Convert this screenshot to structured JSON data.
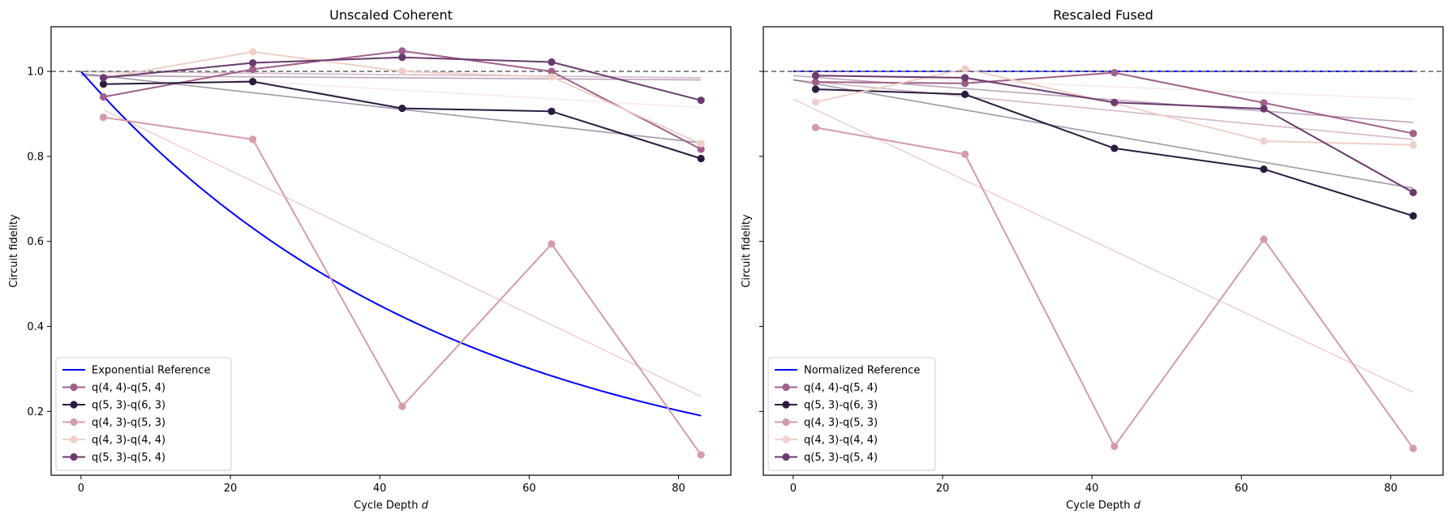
{
  "chart_data": [
    {
      "type": "line",
      "title": "Unscaled Coherent",
      "xlabel_main": "Cycle Depth ",
      "xlabel_var": "d",
      "ylabel": "Circuit fidelity",
      "xlim": [
        -4,
        87
      ],
      "ylim": [
        0.05,
        1.105
      ],
      "xticks": [
        0,
        20,
        40,
        60,
        80
      ],
      "xtick_labels": [
        "0",
        "20",
        "40",
        "60",
        "80"
      ],
      "yticks": [
        0.2,
        0.4,
        0.6,
        0.8,
        1.0
      ],
      "ytick_labels": [
        "0.2",
        "0.4",
        "0.6",
        "0.8",
        "1.0"
      ],
      "y_tick_labels_visible": true,
      "reference_hline": 1.0,
      "legend_position": "lower-left",
      "reference": {
        "name": "Exponential Reference",
        "color": "#0000ff",
        "kind": "exp",
        "amplitude": 1.0,
        "rate": 0.02
      },
      "series": [
        {
          "name": "q(4, 4)-q(5, 4)",
          "color": "#a0608a",
          "x": [
            3,
            23,
            43,
            63,
            83
          ],
          "y": [
            0.94,
            1.005,
            1.048,
            1.0,
            0.817
          ],
          "fit_x": [
            0,
            83
          ],
          "fit_y": [
            1.0,
            0.985
          ]
        },
        {
          "name": "q(5, 3)-q(6, 3)",
          "color": "#2c1b3e",
          "x": [
            3,
            23,
            43,
            63,
            83
          ],
          "y": [
            0.97,
            0.976,
            0.913,
            0.906,
            0.795
          ],
          "fit_x": [
            0,
            83
          ],
          "fit_y": [
            0.995,
            0.832
          ]
        },
        {
          "name": "q(4, 3)-q(5, 3)",
          "color": "#d49ca8",
          "x": [
            3,
            23,
            43,
            63,
            83
          ],
          "y": [
            0.892,
            0.84,
            0.212,
            0.594,
            0.098
          ],
          "fit_x": [
            3,
            83
          ],
          "fit_y": [
            0.91,
            0.235
          ]
        },
        {
          "name": "q(4, 3)-q(4, 4)",
          "color": "#efd0c8",
          "x": [
            3,
            23,
            43,
            63,
            83
          ],
          "y": [
            0.985,
            1.046,
            1.0,
            0.987,
            0.83
          ],
          "fit_x": [
            0,
            83
          ],
          "fit_y": [
            1.0,
            0.915
          ]
        },
        {
          "name": "q(5, 3)-q(5, 4)",
          "color": "#6a3a6e",
          "x": [
            3,
            23,
            43,
            63,
            83
          ],
          "y": [
            0.985,
            1.02,
            1.033,
            1.022,
            0.932
          ],
          "fit_x": [
            0,
            83
          ],
          "fit_y": [
            0.99,
            0.98
          ]
        }
      ]
    },
    {
      "type": "line",
      "title": "Rescaled Fused",
      "xlabel_main": "Cycle Depth ",
      "xlabel_var": "d",
      "ylabel": "Circuit fidelity",
      "xlim": [
        -4,
        87
      ],
      "ylim": [
        0.05,
        1.105
      ],
      "xticks": [
        0,
        20,
        40,
        60,
        80
      ],
      "xtick_labels": [
        "0",
        "20",
        "40",
        "60",
        "80"
      ],
      "yticks": [
        0.2,
        0.4,
        0.6,
        0.8,
        1.0
      ],
      "ytick_labels": [
        "0.2",
        "0.4",
        "0.6",
        "0.8",
        "1.0"
      ],
      "y_tick_labels_visible": false,
      "reference_hline": 1.0,
      "legend_position": "lower-left",
      "reference": {
        "name": "Normalized Reference",
        "color": "#0000ff",
        "kind": "flat",
        "value": 1.0
      },
      "series": [
        {
          "name": "q(4, 4)-q(5, 4)",
          "color": "#a0608a",
          "x": [
            3,
            23,
            43,
            63,
            83
          ],
          "y": [
            0.975,
            0.972,
            0.997,
            0.926,
            0.854
          ],
          "fit_x": [
            0,
            83
          ],
          "fit_y": [
            0.98,
            0.84
          ]
        },
        {
          "name": "q(5, 3)-q(6, 3)",
          "color": "#2c1b3e",
          "x": [
            3,
            23,
            43,
            63,
            83
          ],
          "y": [
            0.958,
            0.946,
            0.819,
            0.77,
            0.66
          ],
          "fit_x": [
            0,
            83
          ],
          "fit_y": [
            0.98,
            0.725
          ]
        },
        {
          "name": "q(4, 3)-q(5, 3)",
          "color": "#d49ca8",
          "x": [
            3,
            23,
            43,
            63,
            83
          ],
          "y": [
            0.868,
            0.805,
            0.118,
            0.605,
            0.113
          ],
          "fit_x": [
            0,
            83
          ],
          "fit_y": [
            0.935,
            0.245
          ]
        },
        {
          "name": "q(4, 3)-q(4, 4)",
          "color": "#efd0c8",
          "x": [
            3,
            23,
            43,
            63,
            83
          ],
          "y": [
            0.928,
            1.006,
            0.925,
            0.836,
            0.827
          ],
          "fit_x": [
            0,
            83
          ],
          "fit_y": [
            0.995,
            0.935
          ]
        },
        {
          "name": "q(5, 3)-q(5, 4)",
          "color": "#6a3a6e",
          "x": [
            3,
            23,
            43,
            63,
            83
          ],
          "y": [
            0.99,
            0.985,
            0.927,
            0.912,
            0.715
          ],
          "fit_x": [
            0,
            83
          ],
          "fit_y": [
            0.99,
            0.88
          ]
        }
      ]
    }
  ]
}
